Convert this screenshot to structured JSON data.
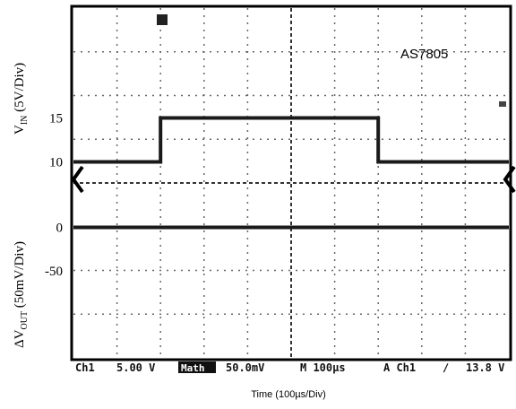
{
  "chart_data": {
    "type": "line",
    "part_label": "AS7805",
    "xlabel": "Time (100µs/Div)",
    "x_divisions": 10,
    "top_panel": {
      "ylabel_main": "V",
      "ylabel_sub": "IN",
      "ylabel_rest": " (5V/Div)",
      "ticks": [
        {
          "value": 15,
          "label": "15"
        },
        {
          "value": 10,
          "label": "10"
        }
      ],
      "ylim": [
        7.5,
        27.5
      ],
      "series": [
        {
          "x": [
            0,
            2,
            2,
            7,
            7,
            10
          ],
          "y": [
            10,
            10,
            15,
            15,
            10,
            10
          ]
        }
      ]
    },
    "bottom_panel": {
      "ylabel_delta": "Δ",
      "ylabel_main": "V",
      "ylabel_sub": "OUT",
      "ylabel_rest": " (50mV/Div)",
      "ticks": [
        {
          "value": 0,
          "label": "0"
        },
        {
          "value": -50,
          "label": "-50"
        }
      ],
      "ylim": [
        -150,
        50
      ],
      "series": [
        {
          "x": [
            0,
            10
          ],
          "y": [
            0,
            0
          ]
        }
      ]
    },
    "status_bar": {
      "ch1": "Ch1",
      "ch1_scale": "5.00 V",
      "math_tag": "Math",
      "math_scale": "50.0mV",
      "timebase": "M 100µs",
      "trigger_src": "A  Ch1",
      "trigger_slope": "∕",
      "trigger_level": "13.8 V"
    }
  }
}
